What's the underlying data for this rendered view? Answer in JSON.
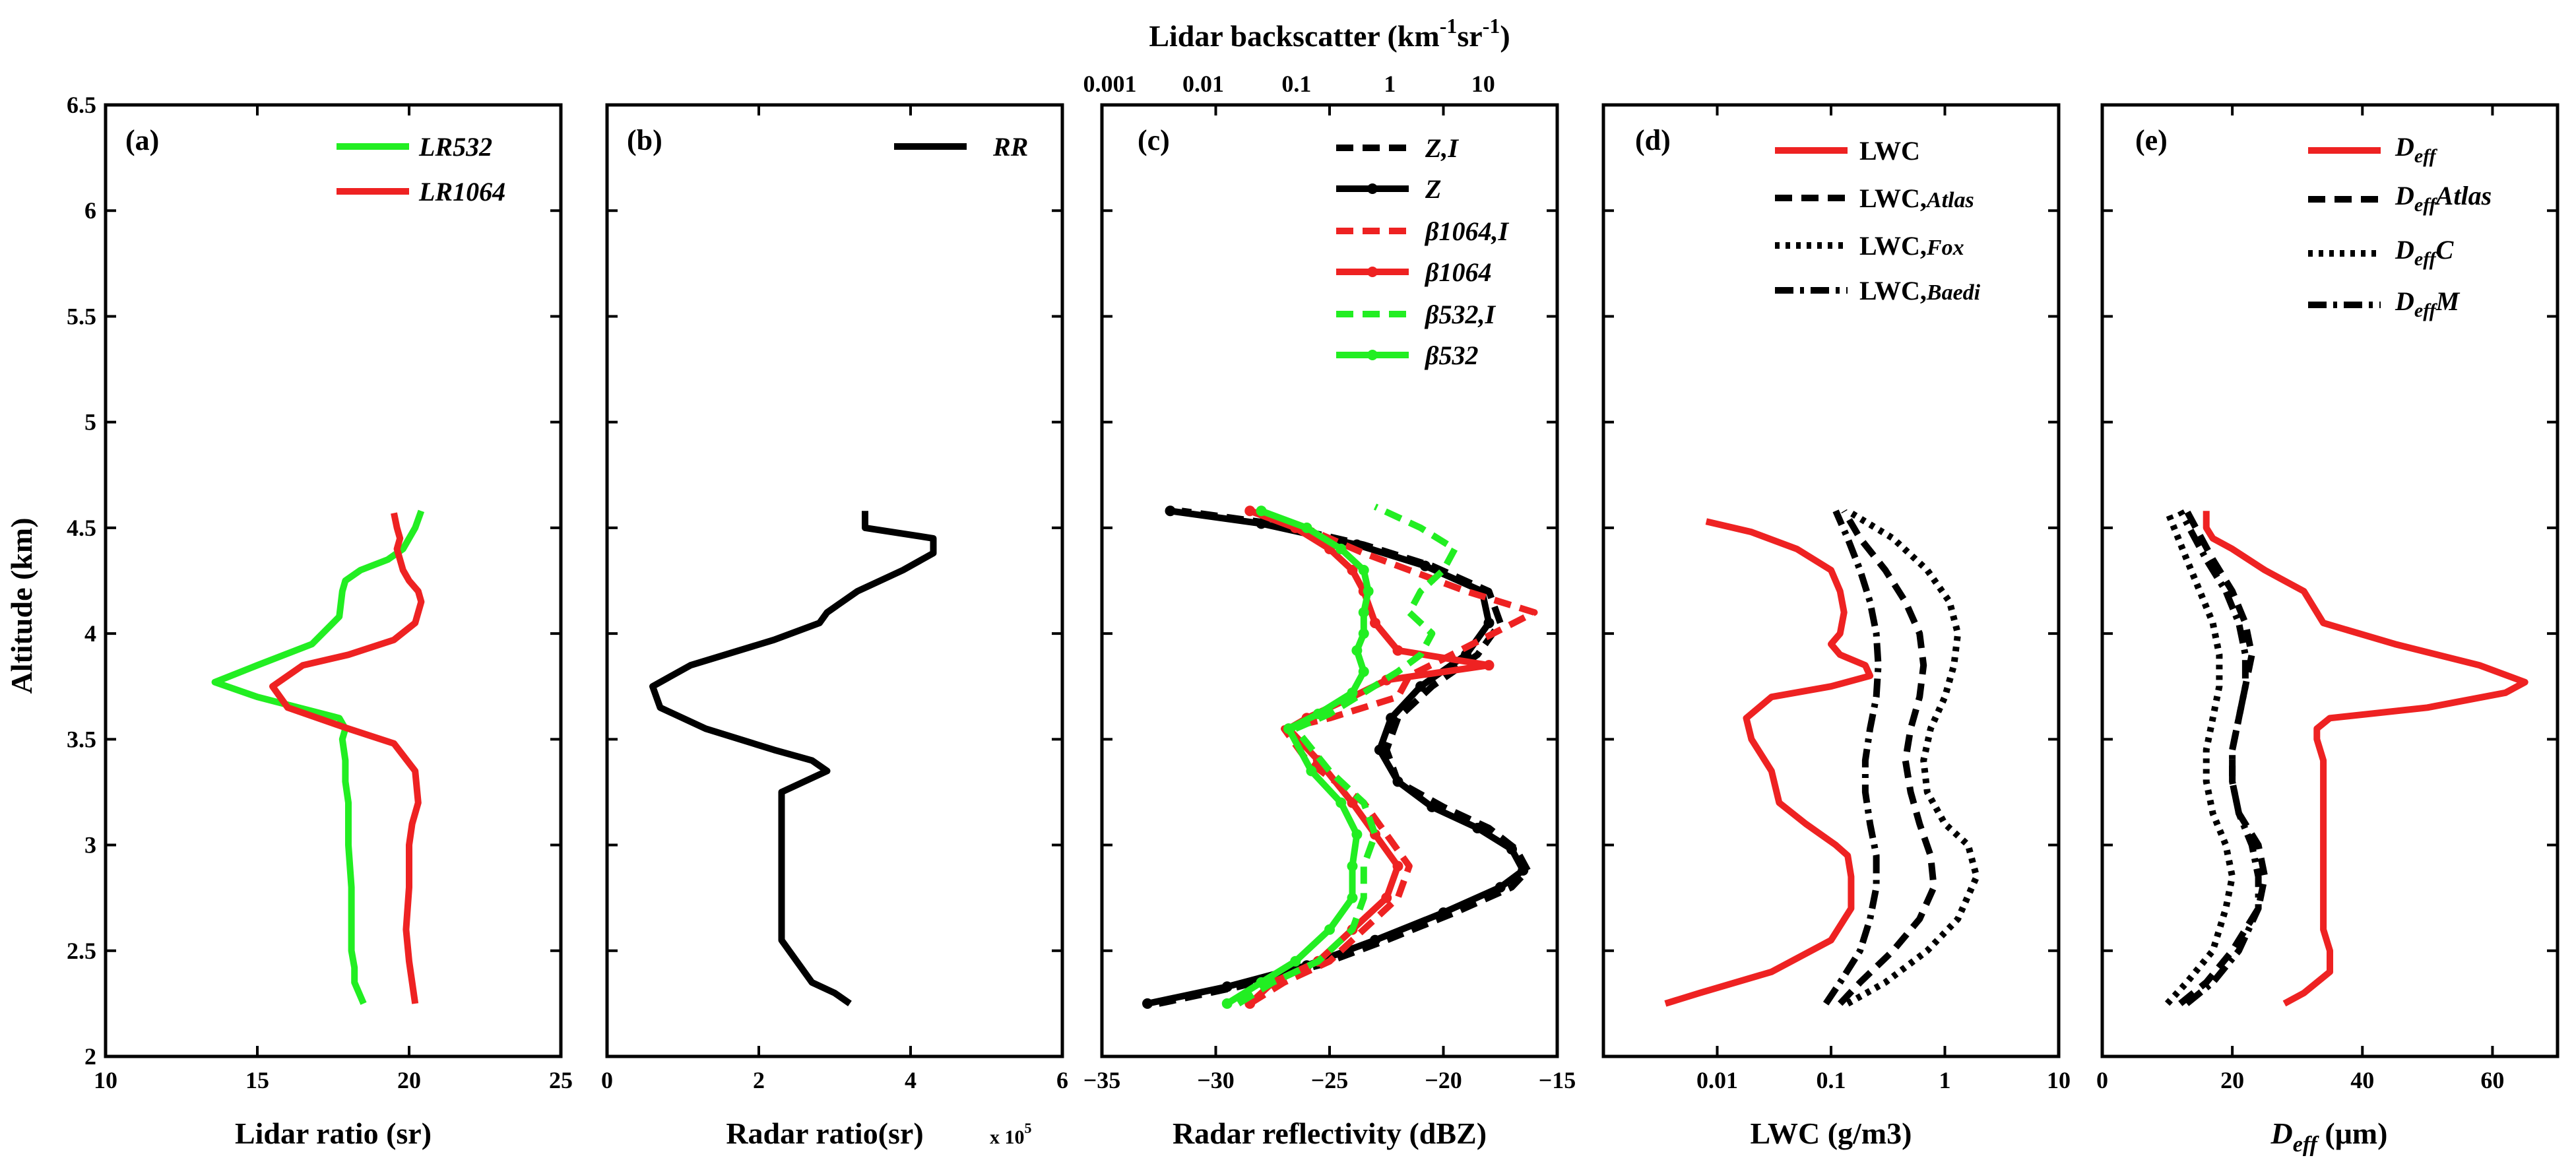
{
  "chart_data": [
    {
      "type": "line",
      "panel_label": "(a)",
      "xlabel": "Lidar ratio (sr)",
      "ylabel": "Altitude (km)",
      "xlim": [
        10,
        25
      ],
      "ylim": [
        2,
        6.5
      ],
      "xticks": [
        "10",
        "15",
        "20",
        "25"
      ],
      "yticks": [
        "2",
        "2.5",
        "3",
        "3.5",
        "4",
        "4.5",
        "5",
        "5.5",
        "6",
        "6.5"
      ],
      "colors": {
        "green": "#22ee22",
        "red": "#ee2222",
        "black": "#000000"
      },
      "series": [
        {
          "name": "LR532",
          "color": "#22ee22",
          "style": "solid",
          "x": [
            18.5,
            18.2,
            18.2,
            18.1,
            18.1,
            18.1,
            18.0,
            18.0,
            18.0,
            17.9,
            17.9,
            17.8,
            17.9,
            17.7,
            15.0,
            13.6,
            15.0,
            16.8,
            17.7,
            17.8,
            17.9,
            18.4,
            19.3,
            19.8,
            20.0,
            20.2,
            20.4
          ],
          "y": [
            2.25,
            2.35,
            2.42,
            2.5,
            2.6,
            2.8,
            3.0,
            3.1,
            3.2,
            3.3,
            3.4,
            3.5,
            3.55,
            3.6,
            3.7,
            3.77,
            3.85,
            3.95,
            4.08,
            4.2,
            4.25,
            4.3,
            4.35,
            4.4,
            4.45,
            4.5,
            4.58
          ]
        },
        {
          "name": "LR1064",
          "color": "#ee2222",
          "style": "solid",
          "x": [
            20.2,
            20.1,
            20.0,
            19.9,
            20.0,
            20.0,
            20.1,
            20.3,
            20.2,
            19.5,
            18.0,
            16.0,
            15.5,
            16.5,
            18.0,
            19.5,
            20.2,
            20.4,
            20.3,
            20.0,
            19.8,
            19.7,
            19.6,
            19.7,
            19.6,
            19.5
          ],
          "y": [
            2.25,
            2.35,
            2.45,
            2.6,
            2.8,
            3.0,
            3.1,
            3.2,
            3.35,
            3.48,
            3.55,
            3.65,
            3.75,
            3.85,
            3.9,
            3.97,
            4.05,
            4.15,
            4.2,
            4.25,
            4.3,
            4.35,
            4.4,
            4.45,
            4.5,
            4.57
          ]
        }
      ],
      "legend": [
        "LR532",
        "LR1064"
      ],
      "legend_position": "top-right"
    },
    {
      "type": "line",
      "panel_label": "(b)",
      "xlabel": "Radar ratio(sr)",
      "x_multiplier": "x 10",
      "x_multiplier_exp": "5",
      "xlim": [
        0,
        6
      ],
      "ylim": [
        2,
        6.5
      ],
      "xticks": [
        "0",
        "2",
        "4",
        "6"
      ],
      "series": [
        {
          "name": "RR",
          "color": "#000000",
          "style": "solid",
          "x": [
            3.2,
            3.0,
            2.7,
            2.5,
            2.3,
            2.3,
            2.3,
            2.3,
            2.3,
            2.3,
            2.3,
            2.6,
            2.9,
            2.7,
            2.2,
            1.3,
            0.7,
            0.6,
            1.1,
            2.2,
            2.8,
            2.9,
            3.3,
            3.9,
            4.3,
            4.3,
            3.4,
            3.4
          ],
          "y": [
            2.25,
            2.3,
            2.35,
            2.45,
            2.55,
            2.6,
            2.8,
            3.0,
            3.1,
            3.2,
            3.25,
            3.3,
            3.35,
            3.4,
            3.45,
            3.55,
            3.65,
            3.75,
            3.85,
            3.97,
            4.05,
            4.1,
            4.2,
            4.3,
            4.38,
            4.45,
            4.5,
            4.58
          ]
        }
      ],
      "legend": [
        "RR"
      ],
      "legend_position": "top-right"
    },
    {
      "type": "line",
      "panel_label": "(c)",
      "xlabel": "Radar reflectivity (dBZ)",
      "xlim": [
        -35,
        -15
      ],
      "xticks": [
        "−35",
        "−30",
        "−25",
        "−20",
        "−15"
      ],
      "top_axis_title": "Lidar backscatter (km",
      "top_axis_exp1": "-1",
      "top_axis_mid": "sr",
      "top_axis_exp2": "-1",
      "top_axis_close": ")",
      "top_xticks": [
        "0.001",
        "0.01",
        "0.1",
        "1",
        "10"
      ],
      "ylim": [
        2,
        6.5
      ],
      "series": [
        {
          "name": "Z,I",
          "color": "#000000",
          "style": "dashed",
          "x": [
            -32.5,
            -29.0,
            -25.5,
            -22.5,
            -19.5,
            -17.0,
            -16.3,
            -16.8,
            -18.0,
            -20.0,
            -22.0,
            -22.5,
            -22.0,
            -20.5,
            -18.5,
            -17.5,
            -18.0,
            -20.5,
            -23.5,
            -27.5,
            -31.5
          ],
          "y": [
            2.25,
            2.33,
            2.43,
            2.55,
            2.68,
            2.8,
            2.88,
            2.98,
            3.08,
            3.18,
            3.3,
            3.45,
            3.6,
            3.75,
            3.9,
            4.05,
            4.2,
            4.32,
            4.42,
            4.52,
            4.58
          ]
        },
        {
          "name": "Z",
          "color": "#000000",
          "style": "solid-marker",
          "x": [
            -33.0,
            -29.5,
            -26.0,
            -23.0,
            -20.0,
            -17.5,
            -16.5,
            -17.0,
            -18.5,
            -20.5,
            -22.0,
            -22.8,
            -22.3,
            -21.0,
            -19.0,
            -18.0,
            -18.3,
            -20.8,
            -23.8,
            -28.0,
            -32.0
          ],
          "y": [
            2.25,
            2.33,
            2.43,
            2.55,
            2.68,
            2.8,
            2.88,
            2.98,
            3.08,
            3.18,
            3.3,
            3.45,
            3.6,
            3.75,
            3.9,
            4.05,
            4.2,
            4.32,
            4.42,
            4.52,
            4.58
          ]
        },
        {
          "name": "β1064,I",
          "color": "#ee2222",
          "style": "dashed",
          "x": [
            -28.5,
            -27.0,
            -25.0,
            -23.5,
            -22.0,
            -21.5,
            -22.5,
            -23.5,
            -26.0,
            -27.0,
            -25.0,
            -22.0,
            -21.5,
            -20.0,
            -16.0,
            -19.0,
            -21.5,
            -23.5,
            -25.0,
            -26.5,
            -28.5
          ],
          "y": [
            2.25,
            2.35,
            2.45,
            2.6,
            2.75,
            2.9,
            3.05,
            3.2,
            3.4,
            3.55,
            3.6,
            3.7,
            3.8,
            3.88,
            4.1,
            4.2,
            4.3,
            4.38,
            4.45,
            4.52,
            4.58
          ]
        },
        {
          "name": "β1064",
          "color": "#ee2222",
          "style": "solid-marker",
          "x": [
            -28.5,
            -27.5,
            -25.5,
            -24.0,
            -22.5,
            -22.0,
            -23.0,
            -24.0,
            -25.5,
            -26.8,
            -26.0,
            -24.0,
            -22.5,
            -18.0,
            -22.0,
            -23.0,
            -23.5,
            -24.0,
            -25.0,
            -26.5,
            -28.5
          ],
          "y": [
            2.25,
            2.35,
            2.45,
            2.6,
            2.75,
            2.9,
            3.05,
            3.2,
            3.4,
            3.55,
            3.6,
            3.7,
            3.78,
            3.85,
            3.92,
            4.05,
            4.2,
            4.3,
            4.4,
            4.5,
            4.58
          ]
        },
        {
          "name": "β532,I",
          "color": "#22ee22",
          "style": "dashed",
          "x": [
            -29.0,
            -27.5,
            -25.5,
            -24.0,
            -23.5,
            -23.5,
            -23.0,
            -23.5,
            -25.0,
            -26.5,
            -25.0,
            -23.5,
            -22.0,
            -21.0,
            -20.5,
            -21.5,
            -21.0,
            -20.0,
            -19.5,
            -21.0,
            -23.0
          ],
          "y": [
            2.25,
            2.35,
            2.45,
            2.6,
            2.75,
            2.9,
            3.05,
            3.2,
            3.35,
            3.55,
            3.62,
            3.72,
            3.82,
            3.9,
            4.0,
            4.1,
            4.2,
            4.3,
            4.4,
            4.5,
            4.6
          ]
        },
        {
          "name": "β532",
          "color": "#22ee22",
          "style": "solid-marker",
          "x": [
            -29.5,
            -28.0,
            -26.5,
            -25.0,
            -24.0,
            -24.0,
            -23.8,
            -24.5,
            -25.8,
            -26.8,
            -25.5,
            -24.0,
            -23.5,
            -23.8,
            -23.5,
            -23.5,
            -23.3,
            -23.5,
            -24.5,
            -26.0,
            -28.0
          ],
          "y": [
            2.25,
            2.35,
            2.45,
            2.6,
            2.75,
            2.9,
            3.05,
            3.2,
            3.35,
            3.55,
            3.62,
            3.72,
            3.82,
            3.92,
            4.0,
            4.1,
            4.2,
            4.3,
            4.4,
            4.5,
            4.58
          ]
        }
      ],
      "legend": [
        "Z,I",
        "Z",
        "β1064,I",
        "β1064",
        "β532,I",
        "β532"
      ],
      "legend_position": "top-right"
    },
    {
      "type": "line",
      "panel_label": "(d)",
      "xlabel": "LWC (g/m3)",
      "xscale": "log",
      "xlim": [
        0.001,
        10
      ],
      "xticks": [
        "0.01",
        "0.1",
        "1",
        "10"
      ],
      "ylim": [
        2,
        6.5
      ],
      "series": [
        {
          "name_prefix": "LWC",
          "name_suffix": "",
          "color": "#ee2222",
          "style": "solid",
          "x": [
            0.0035,
            0.007,
            0.03,
            0.1,
            0.15,
            0.15,
            0.14,
            0.11,
            0.06,
            0.035,
            0.03,
            0.02,
            0.018,
            0.03,
            0.1,
            0.22,
            0.2,
            0.12,
            0.1,
            0.12,
            0.13,
            0.12,
            0.1,
            0.05,
            0.02,
            0.008
          ],
          "y": [
            2.25,
            2.3,
            2.4,
            2.55,
            2.7,
            2.85,
            2.95,
            3.0,
            3.1,
            3.2,
            3.35,
            3.5,
            3.6,
            3.7,
            3.75,
            3.8,
            3.85,
            3.9,
            3.95,
            4.0,
            4.1,
            4.2,
            4.3,
            4.4,
            4.48,
            4.53
          ]
        },
        {
          "name_prefix": "LWC,",
          "name_suffix": "Atlas",
          "color": "#000000",
          "style": "dashed",
          "x": [
            0.12,
            0.18,
            0.35,
            0.6,
            0.8,
            0.75,
            0.6,
            0.5,
            0.45,
            0.5,
            0.6,
            0.65,
            0.6,
            0.45,
            0.3,
            0.18,
            0.13
          ],
          "y": [
            2.25,
            2.35,
            2.5,
            2.65,
            2.8,
            2.95,
            3.1,
            3.25,
            3.4,
            3.55,
            3.7,
            3.85,
            4.0,
            4.15,
            4.3,
            4.45,
            4.58
          ]
        },
        {
          "name_prefix": "LWC,",
          "name_suffix": "Fox",
          "color": "#000000",
          "style": "dotted",
          "x": [
            0.14,
            0.3,
            0.7,
            1.3,
            1.9,
            1.6,
            1.0,
            0.7,
            0.65,
            0.75,
            1.0,
            1.2,
            1.3,
            1.1,
            0.7,
            0.35,
            0.14
          ],
          "y": [
            2.25,
            2.35,
            2.5,
            2.65,
            2.85,
            3.0,
            3.1,
            3.25,
            3.4,
            3.55,
            3.7,
            3.85,
            4.0,
            4.15,
            4.3,
            4.45,
            4.58
          ]
        },
        {
          "name_prefix": "LWC,",
          "name_suffix": "Baedi",
          "color": "#000000",
          "style": "dashdot",
          "x": [
            0.09,
            0.12,
            0.18,
            0.22,
            0.25,
            0.25,
            0.22,
            0.2,
            0.2,
            0.22,
            0.25,
            0.26,
            0.25,
            0.22,
            0.18,
            0.14,
            0.11
          ],
          "y": [
            2.25,
            2.35,
            2.5,
            2.65,
            2.8,
            2.95,
            3.1,
            3.25,
            3.4,
            3.55,
            3.7,
            3.85,
            4.0,
            4.15,
            4.3,
            4.45,
            4.58
          ]
        }
      ],
      "legend_position": "top-right"
    },
    {
      "type": "line",
      "panel_label": "(e)",
      "xlabel_main": "D",
      "xlabel_sub": "eff",
      "xlabel_unit": " (μm)",
      "xlim": [
        0,
        70
      ],
      "xticks": [
        "0",
        "20",
        "40",
        "60"
      ],
      "ylim": [
        2,
        6.5
      ],
      "series": [
        {
          "name_main": "D",
          "name_sub": "eff",
          "name_after": "",
          "color": "#ee2222",
          "style": "solid",
          "x": [
            28,
            31,
            35,
            35,
            34,
            34,
            34,
            34,
            34,
            34,
            34,
            33,
            33,
            35,
            50,
            62,
            65,
            58,
            45,
            34,
            32,
            31,
            25,
            20,
            17,
            16,
            16
          ],
          "y": [
            2.25,
            2.3,
            2.4,
            2.5,
            2.6,
            2.8,
            3.0,
            3.1,
            3.2,
            3.3,
            3.4,
            3.5,
            3.55,
            3.6,
            3.65,
            3.72,
            3.77,
            3.85,
            3.95,
            4.05,
            4.15,
            4.2,
            4.3,
            4.4,
            4.45,
            4.5,
            4.58
          ]
        },
        {
          "name_main": "D",
          "name_sub": "eff",
          "name_after": "Atlas",
          "color": "#000000",
          "style": "dashed",
          "x": [
            12,
            16,
            20,
            24,
            25,
            24,
            21,
            20,
            20,
            21,
            22,
            23,
            22,
            20,
            17,
            13
          ],
          "y": [
            2.25,
            2.35,
            2.5,
            2.7,
            2.85,
            3.0,
            3.15,
            3.3,
            3.45,
            3.6,
            3.75,
            3.9,
            4.05,
            4.2,
            4.35,
            4.58
          ]
        },
        {
          "name_main": "D",
          "name_sub": "eff",
          "name_after": "C",
          "color": "#000000",
          "style": "dotted",
          "x": [
            10,
            13,
            17,
            19,
            20,
            19,
            17,
            16,
            16,
            17,
            18,
            18,
            17,
            15,
            13,
            10
          ],
          "y": [
            2.25,
            2.35,
            2.5,
            2.7,
            2.85,
            3.0,
            3.15,
            3.3,
            3.45,
            3.6,
            3.75,
            3.9,
            4.05,
            4.2,
            4.35,
            4.58
          ]
        },
        {
          "name_main": "D",
          "name_sub": "eff",
          "name_after": "M",
          "color": "#000000",
          "style": "dashdot",
          "x": [
            13,
            17,
            21,
            24,
            24,
            23,
            21,
            20,
            20,
            21,
            22,
            22,
            21,
            19,
            16,
            12
          ],
          "y": [
            2.25,
            2.35,
            2.5,
            2.7,
            2.85,
            3.0,
            3.15,
            3.3,
            3.45,
            3.6,
            3.75,
            3.9,
            4.05,
            4.2,
            4.35,
            4.58
          ]
        }
      ],
      "legend_position": "top-right"
    }
  ]
}
